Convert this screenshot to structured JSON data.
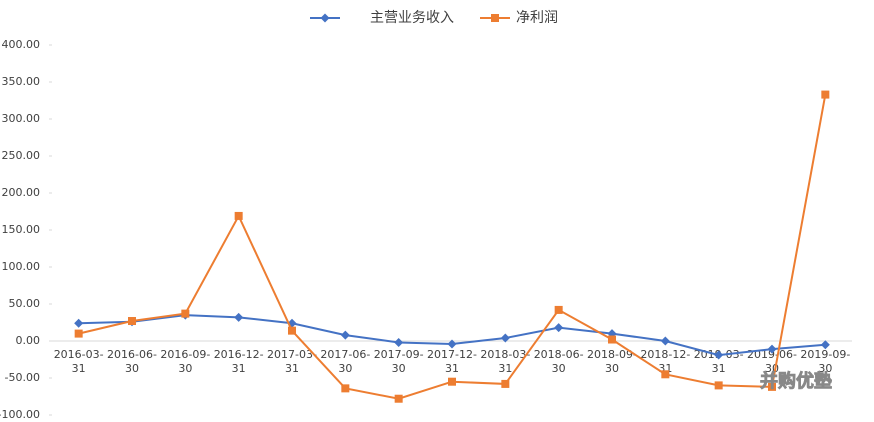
{
  "chart_data": {
    "type": "line",
    "categories": [
      "2016-03-31",
      "2016-06-30",
      "2016-09-30",
      "2016-12-31",
      "2017-03-31",
      "2017-06-30",
      "2017-09-30",
      "2017-12-31",
      "2018-03-31",
      "2018-06-30",
      "2018-09-30",
      "2018-12-31",
      "2019-03-31",
      "2019-06-30",
      "2019-09-30"
    ],
    "series": [
      {
        "name": "主营业务收入",
        "color": "#4472c4",
        "marker": "diamond",
        "values": [
          24,
          26,
          35,
          32,
          24,
          8,
          -2,
          -4,
          4,
          18,
          10,
          0,
          -19,
          -11,
          -5
        ]
      },
      {
        "name": "净利润",
        "color": "#ed7d31",
        "marker": "square",
        "values": [
          10,
          27,
          37,
          169,
          14,
          -64,
          -78,
          -55,
          -58,
          42,
          2,
          -45,
          -60,
          -62,
          333
        ]
      }
    ],
    "ylim": [
      -100,
      400
    ],
    "yticks": [
      {
        "value": -100,
        "label": "-100.00"
      },
      {
        "value": -50,
        "label": "-50.00"
      },
      {
        "value": 0,
        "label": "0.00"
      },
      {
        "value": 50,
        "label": "50.00"
      },
      {
        "value": 100,
        "label": "100.00"
      },
      {
        "value": 150,
        "label": "150.00"
      },
      {
        "value": 200,
        "label": "200.00"
      },
      {
        "value": 250,
        "label": "250.00"
      },
      {
        "value": 300,
        "label": "300.00"
      },
      {
        "value": 350,
        "label": "350.00"
      },
      {
        "value": 400,
        "label": "400.00"
      }
    ],
    "grid": false,
    "legend": "top",
    "watermark": "并购优塾"
  }
}
